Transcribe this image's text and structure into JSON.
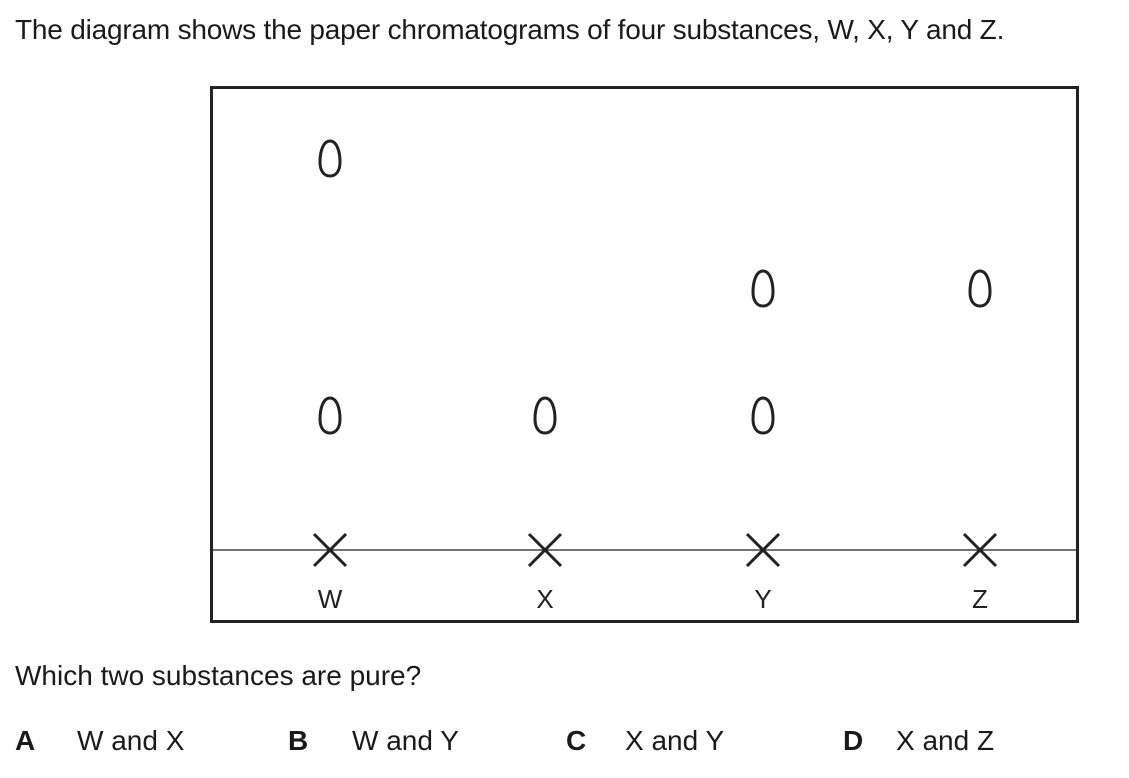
{
  "question": {
    "intro": "The diagram shows the paper chromatograms of four substances, W, X, Y and Z.",
    "prompt": "Which two substances are pure?"
  },
  "diagram": {
    "lanes": [
      {
        "label": "W",
        "spot_count": 2
      },
      {
        "label": "X",
        "spot_count": 1
      },
      {
        "label": "Y",
        "spot_count": 2
      },
      {
        "label": "Z",
        "spot_count": 1
      }
    ]
  },
  "options": [
    {
      "letter": "A",
      "text": "W and X"
    },
    {
      "letter": "B",
      "text": "W and Y"
    },
    {
      "letter": "C",
      "text": "X and Y"
    },
    {
      "letter": "D",
      "text": "X and Z"
    }
  ]
}
